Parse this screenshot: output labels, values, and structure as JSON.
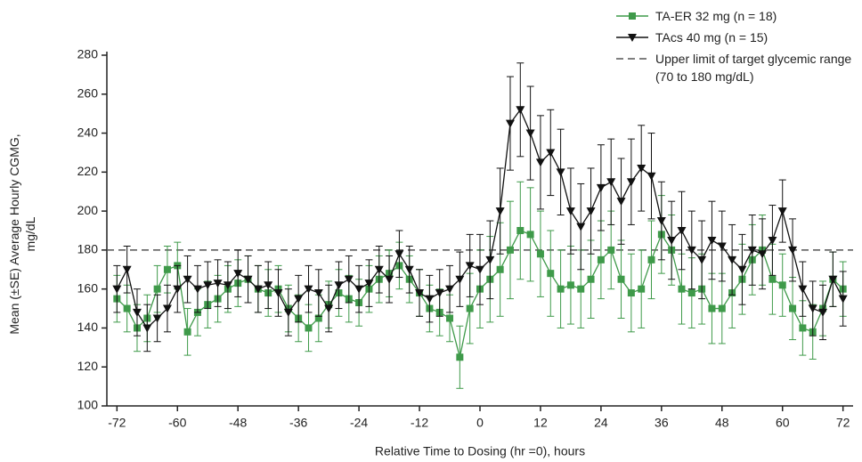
{
  "chart_data": {
    "type": "line",
    "xlabel": "Relative Time to Dosing (hr =0), hours",
    "ylabel": "Mean (±SE) Average Hourly CGMG, mg/dL",
    "x": [
      -72,
      -70,
      -68,
      -66,
      -64,
      -62,
      -60,
      -58,
      -56,
      -54,
      -52,
      -50,
      -48,
      -46,
      -44,
      -42,
      -40,
      -38,
      -36,
      -34,
      -32,
      -30,
      -28,
      -26,
      -24,
      -22,
      -20,
      -18,
      -16,
      -14,
      -12,
      -10,
      -8,
      -6,
      -4,
      -2,
      0,
      2,
      4,
      6,
      8,
      10,
      12,
      14,
      16,
      18,
      20,
      22,
      24,
      26,
      28,
      30,
      32,
      34,
      36,
      38,
      40,
      42,
      44,
      46,
      48,
      50,
      52,
      54,
      56,
      58,
      60,
      62,
      64,
      66,
      68,
      70,
      72
    ],
    "series": [
      {
        "name": "TA-ER 32 mg (n = 18)",
        "color": "#3f9a4a",
        "marker": "square",
        "values": [
          155,
          150,
          140,
          145,
          160,
          170,
          172,
          138,
          148,
          152,
          155,
          160,
          163,
          165,
          160,
          158,
          160,
          150,
          145,
          140,
          145,
          152,
          158,
          155,
          153,
          160,
          165,
          168,
          172,
          165,
          158,
          150,
          148,
          145,
          125,
          150,
          160,
          165,
          170,
          180,
          190,
          188,
          178,
          168,
          160,
          162,
          160,
          165,
          175,
          180,
          165,
          158,
          160,
          175,
          188,
          180,
          160,
          158,
          160,
          150,
          150,
          158,
          165,
          175,
          180,
          165,
          162,
          150,
          140,
          138,
          150,
          165,
          160
        ],
        "errors": [
          12,
          12,
          12,
          12,
          12,
          12,
          12,
          12,
          12,
          12,
          12,
          12,
          12,
          12,
          12,
          12,
          12,
          12,
          12,
          12,
          12,
          12,
          12,
          12,
          12,
          12,
          12,
          12,
          12,
          12,
          12,
          12,
          12,
          12,
          16,
          18,
          20,
          22,
          24,
          25,
          25,
          24,
          22,
          22,
          20,
          20,
          20,
          20,
          20,
          20,
          20,
          20,
          20,
          20,
          20,
          18,
          18,
          18,
          18,
          18,
          18,
          18,
          18,
          18,
          18,
          18,
          16,
          16,
          14,
          14,
          14,
          14,
          14
        ]
      },
      {
        "name": "TAcs 40 mg (n = 15)",
        "color": "#111111",
        "marker": "triangle-down",
        "values": [
          160,
          170,
          148,
          140,
          145,
          150,
          160,
          165,
          160,
          162,
          163,
          162,
          168,
          165,
          160,
          162,
          158,
          148,
          155,
          160,
          158,
          150,
          162,
          165,
          160,
          163,
          170,
          165,
          178,
          170,
          158,
          155,
          158,
          160,
          165,
          172,
          170,
          175,
          200,
          245,
          252,
          240,
          225,
          230,
          220,
          200,
          192,
          200,
          212,
          215,
          205,
          215,
          222,
          218,
          195,
          185,
          190,
          180,
          175,
          185,
          182,
          175,
          170,
          180,
          178,
          185,
          200,
          180,
          160,
          150,
          148,
          165,
          155
        ],
        "errors": [
          12,
          12,
          12,
          12,
          12,
          12,
          12,
          12,
          12,
          12,
          12,
          12,
          12,
          12,
          12,
          12,
          12,
          12,
          12,
          12,
          12,
          12,
          12,
          12,
          12,
          12,
          12,
          12,
          12,
          12,
          12,
          12,
          12,
          12,
          14,
          16,
          18,
          20,
          22,
          24,
          24,
          24,
          24,
          22,
          22,
          22,
          22,
          22,
          22,
          22,
          22,
          22,
          22,
          22,
          20,
          20,
          20,
          20,
          20,
          20,
          18,
          18,
          18,
          18,
          18,
          18,
          16,
          16,
          14,
          14,
          14,
          14,
          14
        ]
      }
    ],
    "reference_line": {
      "value": 180,
      "label": "Upper limit of target glycemic range (70 to 180 mg/dL)",
      "color": "#555555"
    },
    "xlim": [
      -74,
      74
    ],
    "xticks": [
      -72,
      -60,
      -48,
      -36,
      -24,
      -12,
      0,
      12,
      24,
      36,
      48,
      60,
      72
    ],
    "ylim": [
      100,
      280
    ],
    "yticks": [
      100,
      120,
      140,
      160,
      180,
      200,
      220,
      240,
      260,
      280
    ],
    "legend": "top-right",
    "grid": false
  }
}
